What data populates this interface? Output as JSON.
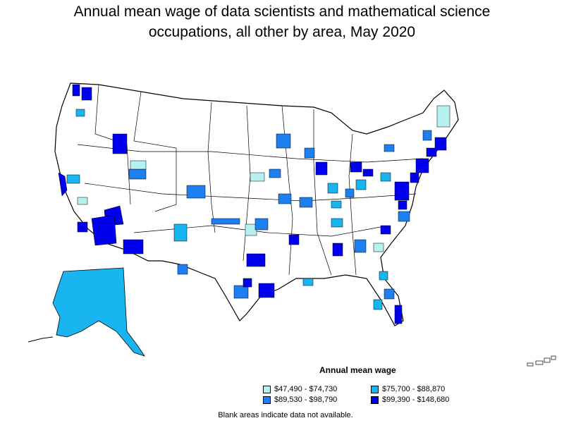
{
  "title_line1": "Annual mean wage of data scientists and mathematical science",
  "title_line2": "occupations, all other by area, May 2020",
  "legend": {
    "title": "Annual mean wage",
    "items": [
      {
        "label": "$47,490 - $74,730",
        "color": "#b7f0f0"
      },
      {
        "label": "$75,700 - $88,870",
        "color": "#19b5f0"
      },
      {
        "label": "$89,530 - $98,790",
        "color": "#1e7ff0"
      },
      {
        "label": "$99,390 - $148,680",
        "color": "#0000ee"
      }
    ]
  },
  "note": "Blank areas indicate data not available."
}
